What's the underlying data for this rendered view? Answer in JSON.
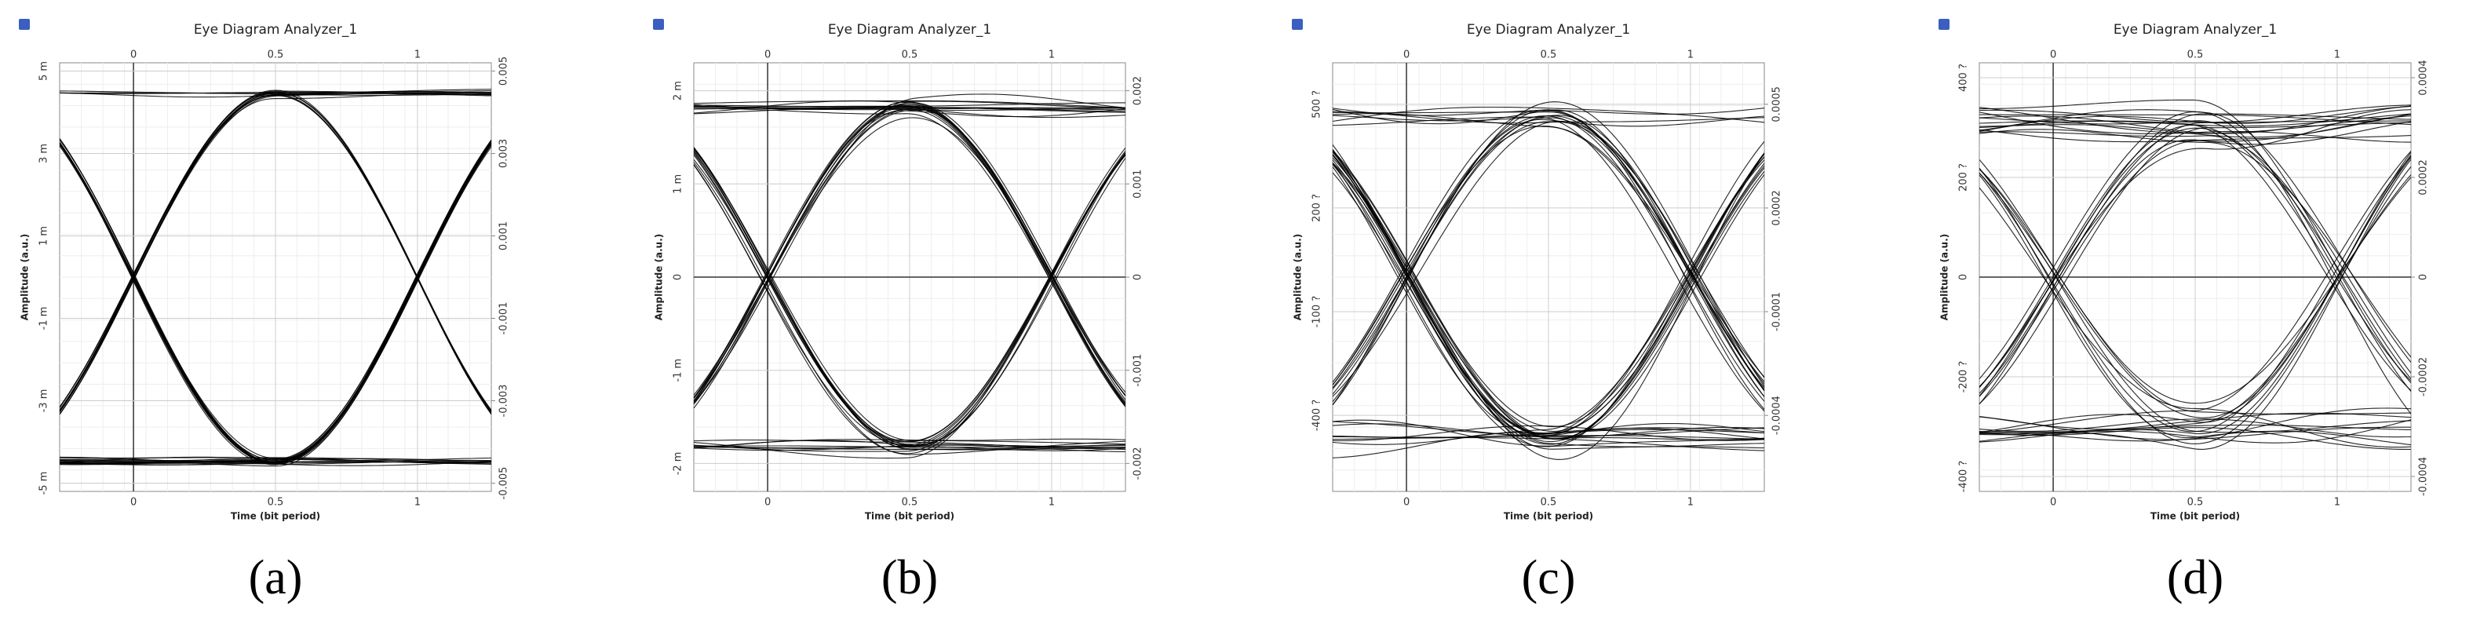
{
  "chart_data": [
    {
      "type": "eye",
      "label": "(a)",
      "title": "Eye Diagram Analyzer_1",
      "x_label": "Time (bit period)",
      "y_label": "Amplitude (a.u.)",
      "xlim": [
        -0.26,
        1.26
      ],
      "xticks": [
        0,
        0.5,
        1
      ],
      "ylim": [
        -0.0052,
        0.0052
      ],
      "yticks": [
        {
          "value": 0.005,
          "label": "5 m"
        },
        {
          "value": 0.003,
          "label": "3 m"
        },
        {
          "value": 0.001,
          "label": "1 m"
        },
        {
          "value": -0.001,
          "label": "-1 m"
        },
        {
          "value": -0.003,
          "label": "-3 m"
        },
        {
          "value": -0.005,
          "label": "-5 m"
        }
      ],
      "y2lim": [
        -0.0052,
        0.0052
      ],
      "y2ticks": [
        0.005,
        0.003,
        0.001,
        -0.001,
        -0.003,
        -0.005
      ],
      "grid": true,
      "color": "#000000"
    },
    {
      "type": "eye",
      "label": "(b)",
      "title": "Eye Diagram Analyzer_1",
      "x_label": "Time (bit period)",
      "y_label": "Amplitude (a.u.)",
      "xlim": [
        -0.26,
        1.26
      ],
      "xticks": [
        0,
        0.5,
        1
      ],
      "ylim": [
        -0.0023,
        0.0023
      ],
      "yticks": [
        {
          "value": 0.002,
          "label": "2 m"
        },
        {
          "value": 0.001,
          "label": "1 m"
        },
        0,
        {
          "value": -0.001,
          "label": "-1 m"
        },
        {
          "value": -0.002,
          "label": "-2 m"
        }
      ],
      "y2lim": [
        -0.0023,
        0.0023
      ],
      "y2ticks": [
        0.002,
        0.001,
        0,
        -0.001,
        -0.002
      ],
      "grid": true,
      "color": "#000000"
    },
    {
      "type": "eye",
      "label": "(c)",
      "title": "Eye Diagram Analyzer_1",
      "x_label": "Time (bit period)",
      "y_label": "Amplitude (a.u.)",
      "xlim": [
        -0.26,
        1.26
      ],
      "xticks": [
        0,
        0.5,
        1
      ],
      "ylim": [
        -0.00062,
        0.00062
      ],
      "yticks": [
        {
          "value": 0.0005,
          "label": "500 ?"
        },
        {
          "value": 0.0002,
          "label": "200 ?"
        },
        {
          "value": -0.0001,
          "label": "-100 ?"
        },
        {
          "value": -0.0004,
          "label": "-400 ?"
        }
      ],
      "y2lim": [
        -0.00062,
        0.00062
      ],
      "y2ticks": [
        0.0005,
        0.0002,
        -0.0001,
        -0.0004
      ],
      "grid": true,
      "color": "#000000"
    },
    {
      "type": "eye",
      "label": "(d)",
      "title": "Eye Diagram Analyzer_1",
      "x_label": "Time (bit period)",
      "y_label": "Amplitude (a.u.)",
      "xlim": [
        -0.26,
        1.26
      ],
      "xticks": [
        0,
        0.5,
        1
      ],
      "ylim": [
        -0.00043,
        0.00043
      ],
      "yticks": [
        {
          "value": 0.0004,
          "label": "400 ?"
        },
        {
          "value": 0.0002,
          "label": "200 ?"
        },
        0,
        {
          "value": -0.0002,
          "label": "-200 ?"
        },
        {
          "value": -0.0004,
          "label": "-400 ?"
        }
      ],
      "y2lim": [
        -0.00043,
        0.00043
      ],
      "y2ticks": [
        0.0004,
        0.0002,
        0,
        -0.0002,
        -0.0004
      ],
      "grid": true,
      "color": "#000000"
    }
  ]
}
